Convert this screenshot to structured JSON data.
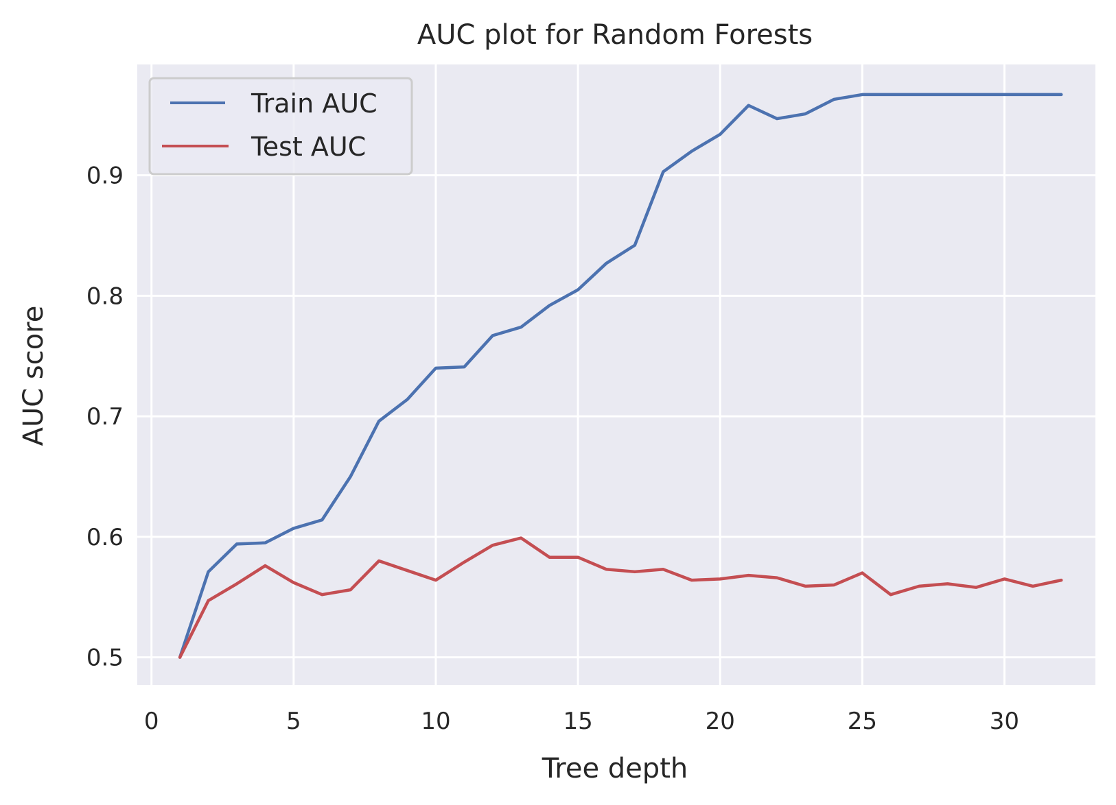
{
  "chart_data": {
    "type": "line",
    "title": "AUC plot for Random Forests",
    "xlabel": "Tree depth",
    "ylabel": "AUC score",
    "xlim": [
      -0.5,
      33.2
    ],
    "ylim": [
      0.477,
      0.992
    ],
    "xticks": [
      0,
      5,
      10,
      15,
      20,
      25,
      30
    ],
    "yticks": [
      0.5,
      0.6,
      0.7,
      0.8,
      0.9
    ],
    "ytick_labels": [
      "0.5",
      "0.6",
      "0.7",
      "0.8",
      "0.9"
    ],
    "grid": true,
    "legend_position": "top-left",
    "background": "#eaeaf2",
    "x": [
      1,
      2,
      3,
      4,
      5,
      6,
      7,
      8,
      9,
      10,
      11,
      12,
      13,
      14,
      15,
      16,
      17,
      18,
      19,
      20,
      21,
      22,
      23,
      24,
      25,
      26,
      27,
      28,
      29,
      30,
      31,
      32
    ],
    "series": [
      {
        "name": "Train AUC",
        "color": "#4c72b0",
        "values": [
          0.5,
          0.571,
          0.594,
          0.595,
          0.607,
          0.614,
          0.65,
          0.696,
          0.714,
          0.74,
          0.741,
          0.767,
          0.774,
          0.792,
          0.805,
          0.827,
          0.842,
          0.903,
          0.92,
          0.934,
          0.958,
          0.947,
          0.951,
          0.963,
          0.967,
          0.967,
          0.967,
          0.967,
          0.967,
          0.967,
          0.967,
          0.967
        ]
      },
      {
        "name": "Test AUC",
        "color": "#c44e52",
        "values": [
          0.5,
          0.547,
          0.561,
          0.576,
          0.562,
          0.552,
          0.556,
          0.58,
          0.572,
          0.564,
          0.579,
          0.593,
          0.599,
          0.583,
          0.583,
          0.573,
          0.571,
          0.573,
          0.564,
          0.565,
          0.568,
          0.566,
          0.559,
          0.56,
          0.57,
          0.552,
          0.559,
          0.561,
          0.558,
          0.565,
          0.559,
          0.564
        ]
      }
    ]
  }
}
